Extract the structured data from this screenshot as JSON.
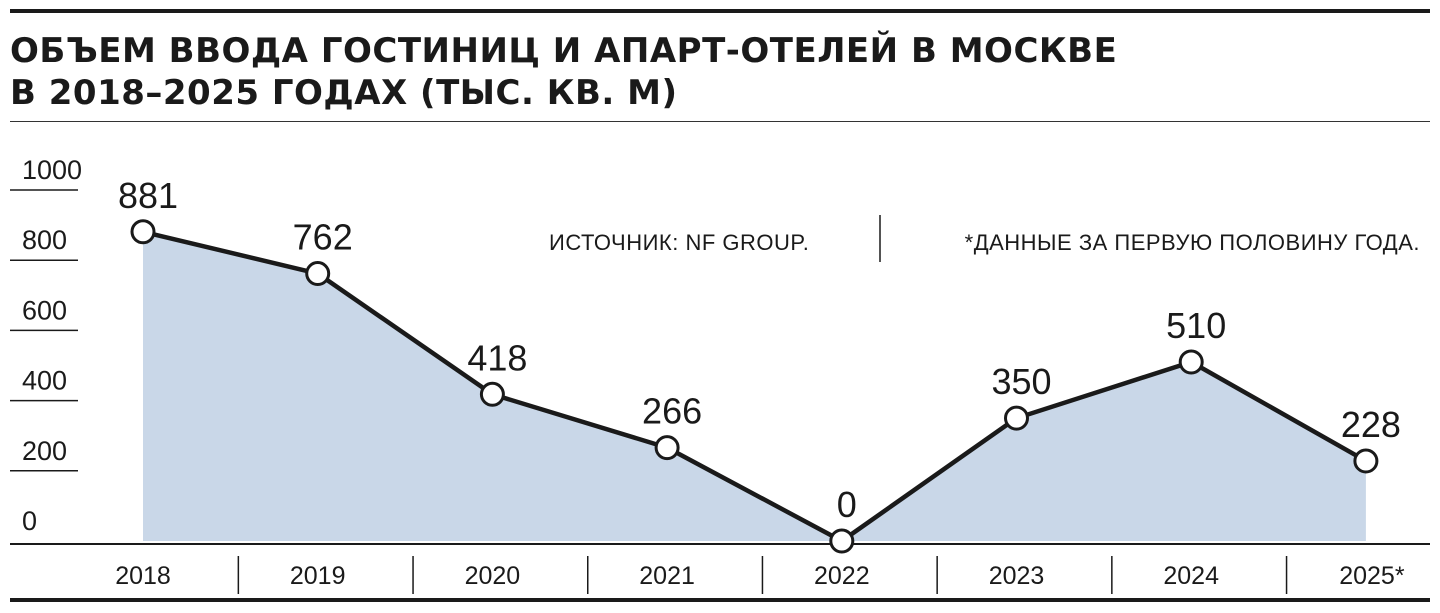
{
  "title_line1": "ОБЪЕМ ВВОДА ГОСТИНИЦ И АПАРТ-ОТЕЛЕЙ В МОСКВЕ",
  "title_line2": "В 2018–2025 ГОДАХ (ТЫС. КВ. М)",
  "source": "ИСТОЧНИК: NF GROUP.",
  "footnote": "*ДАННЫЕ ЗА ПЕРВУЮ ПОЛОВИНУ ГОДА.",
  "colors": {
    "area": "#c9d7e8",
    "line": "#1a1a1a",
    "marker_fill": "#ffffff"
  },
  "chart_data": {
    "type": "area",
    "categories": [
      "2018",
      "2019",
      "2020",
      "2021",
      "2022",
      "2023",
      "2024",
      "2025*"
    ],
    "values": [
      881,
      762,
      418,
      266,
      0,
      350,
      510,
      228
    ],
    "data_labels": [
      "881",
      "762",
      "418",
      "266",
      "0",
      "350",
      "510",
      "228"
    ],
    "yticks": [
      "0",
      "200",
      "400",
      "600",
      "800",
      "1000"
    ],
    "ylim": [
      0,
      1000
    ],
    "markers": true,
    "grid": false
  }
}
